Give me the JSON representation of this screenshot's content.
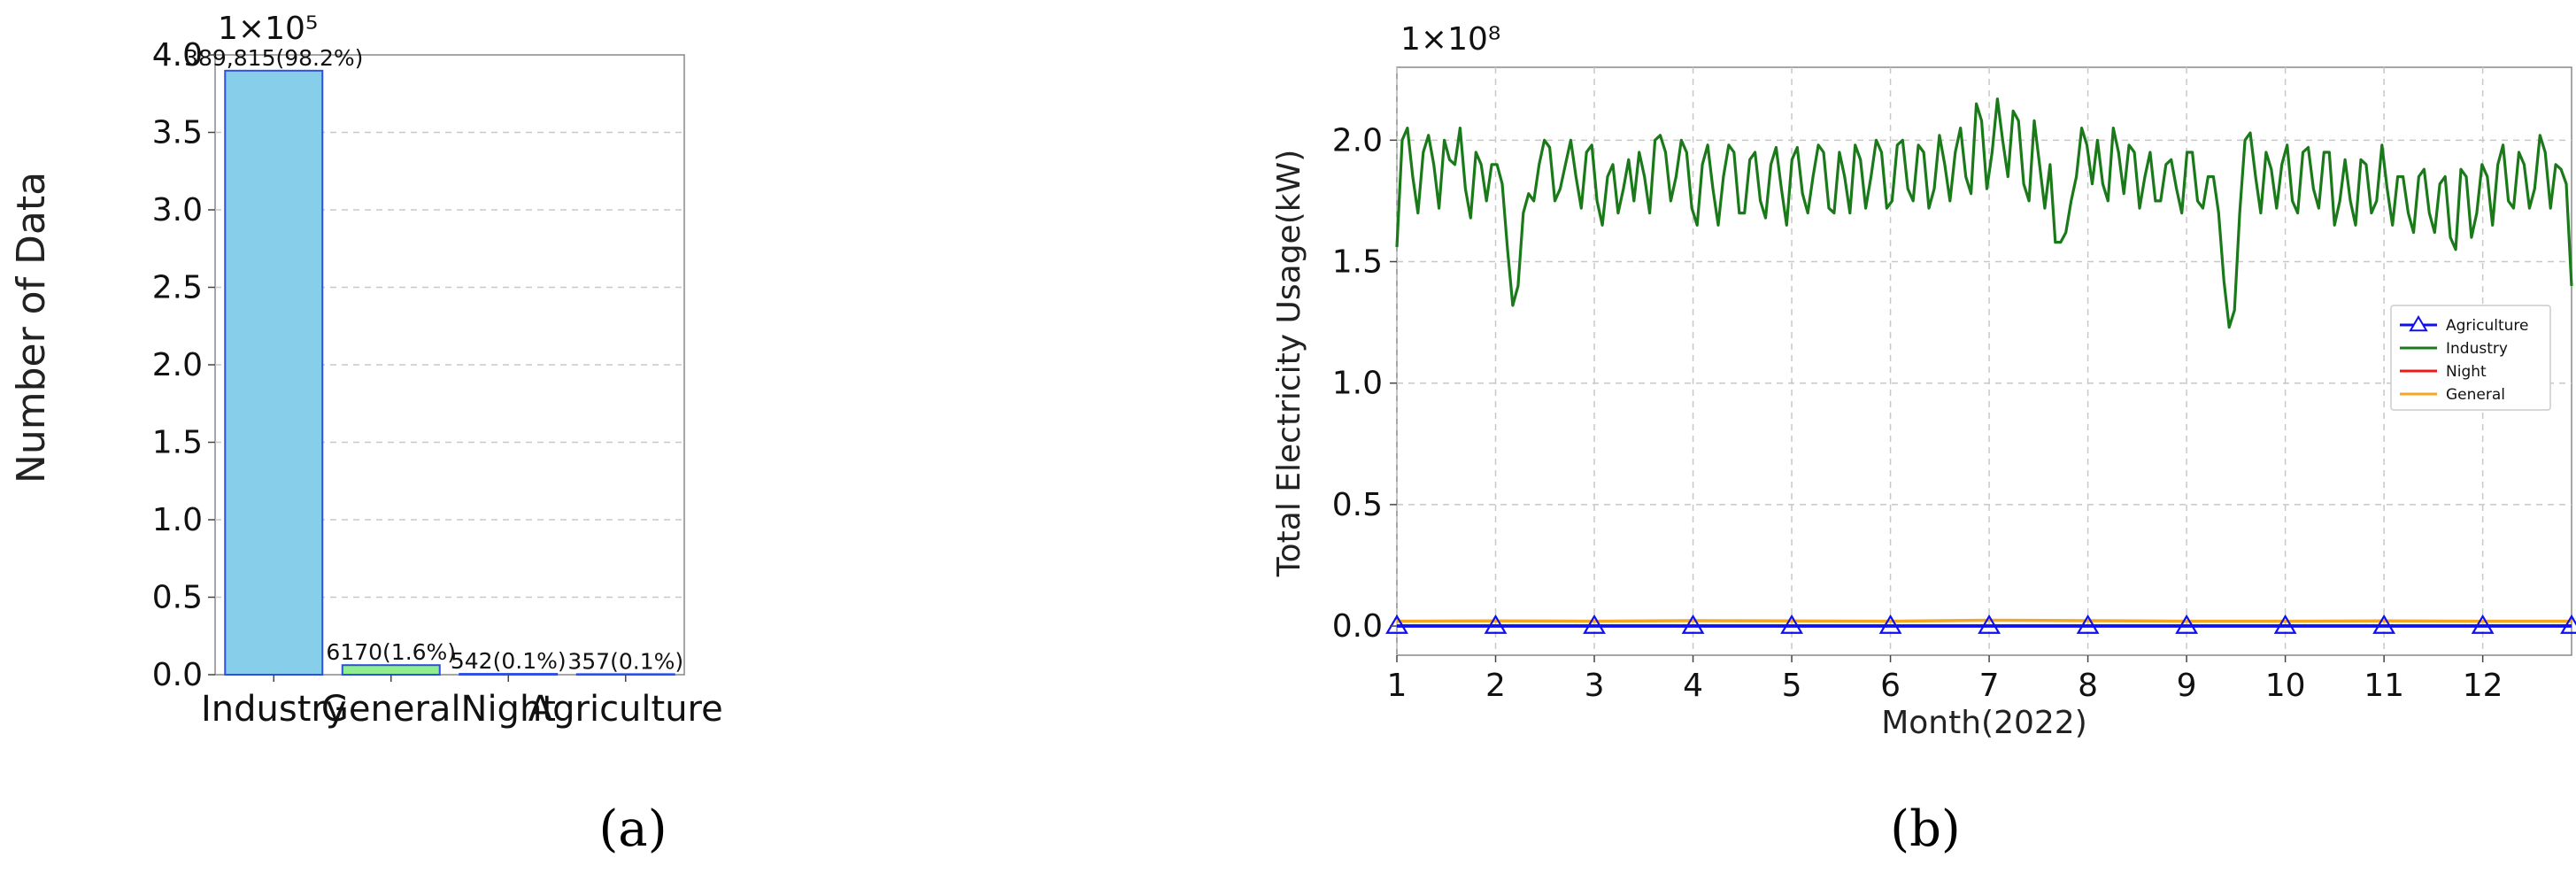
{
  "chart_data": [
    {
      "panel_label": "(a)",
      "type": "bar",
      "ylabel": "Number of Data",
      "y_multiplier": "1×10⁵",
      "ylim": [
        0,
        4.0
      ],
      "yticks": [
        "0.0",
        "0.5",
        "1.0",
        "1.5",
        "2.0",
        "2.5",
        "3.0",
        "3.5",
        "4.0"
      ],
      "grid": true,
      "categories": [
        "Industry",
        "General",
        "Night",
        "Agriculture"
      ],
      "values": [
        389815,
        6170,
        542,
        357
      ],
      "bar_labels": [
        "389,815(98.2%)",
        "6170(1.6%)",
        "542(0.1%)",
        "357(0.1%)"
      ],
      "colors": [
        "#87ceeb",
        "#90ee90",
        "#f08080",
        "#ffd27f"
      ],
      "edge_color": "#2f4fe0"
    },
    {
      "panel_label": "(b)",
      "type": "line",
      "xlabel": "Month(2022)",
      "ylabel": "Total Electricity Usage(kW)",
      "y_multiplier": "1×10⁸",
      "ylim": [
        -0.12,
        2.3
      ],
      "xlim": [
        1,
        12.9
      ],
      "xticks": [
        "1",
        "2",
        "3",
        "4",
        "5",
        "6",
        "7",
        "8",
        "9",
        "10",
        "11",
        "12"
      ],
      "yticks": [
        "0.0",
        "0.5",
        "1.0",
        "1.5",
        "2.0"
      ],
      "grid": true,
      "legend_position": "right",
      "series": [
        {
          "name": "Agriculture",
          "color": "#1010ee",
          "marker": "triangle-open",
          "x": [
            1,
            2,
            3,
            4,
            5,
            6,
            7,
            8,
            9,
            10,
            11,
            12,
            12.9
          ],
          "values": [
            0,
            0,
            0,
            0,
            0,
            0,
            0,
            0,
            0,
            0,
            0,
            0,
            0
          ]
        },
        {
          "name": "Industry",
          "color": "#1a7a1a",
          "x_start": 1,
          "x_end": 12.9,
          "values": [
            1.56,
            2.0,
            2.05,
            1.85,
            1.7,
            1.95,
            2.02,
            1.9,
            1.72,
            2.0,
            1.92,
            1.9,
            2.05,
            1.8,
            1.68,
            1.95,
            1.9,
            1.75,
            1.9,
            1.9,
            1.82,
            1.55,
            1.32,
            1.4,
            1.7,
            1.78,
            1.75,
            1.9,
            2.0,
            1.97,
            1.75,
            1.8,
            1.9,
            2.0,
            1.85,
            1.72,
            1.95,
            1.98,
            1.75,
            1.65,
            1.85,
            1.9,
            1.7,
            1.8,
            1.92,
            1.75,
            1.95,
            1.85,
            1.7,
            2.0,
            2.02,
            1.95,
            1.75,
            1.85,
            2.0,
            1.95,
            1.72,
            1.65,
            1.9,
            1.98,
            1.8,
            1.65,
            1.85,
            1.98,
            1.95,
            1.7,
            1.7,
            1.92,
            1.95,
            1.75,
            1.68,
            1.9,
            1.97,
            1.8,
            1.65,
            1.92,
            1.97,
            1.78,
            1.7,
            1.85,
            1.98,
            1.95,
            1.72,
            1.7,
            1.95,
            1.85,
            1.7,
            1.98,
            1.92,
            1.72,
            1.85,
            2.0,
            1.95,
            1.72,
            1.75,
            1.98,
            2.0,
            1.8,
            1.75,
            1.98,
            1.95,
            1.72,
            1.8,
            2.02,
            1.9,
            1.75,
            1.95,
            2.05,
            1.85,
            1.78,
            2.15,
            2.08,
            1.8,
            1.95,
            2.17,
            2.0,
            1.85,
            2.12,
            2.08,
            1.82,
            1.75,
            2.08,
            1.9,
            1.72,
            1.9,
            1.58,
            1.58,
            1.62,
            1.75,
            1.85,
            2.05,
            1.98,
            1.82,
            2.0,
            1.82,
            1.75,
            2.05,
            1.95,
            1.78,
            1.98,
            1.95,
            1.72,
            1.85,
            1.95,
            1.75,
            1.75,
            1.9,
            1.92,
            1.8,
            1.7,
            1.95,
            1.95,
            1.75,
            1.72,
            1.85,
            1.85,
            1.7,
            1.42,
            1.23,
            1.3,
            1.7,
            2.0,
            2.03,
            1.85,
            1.7,
            1.95,
            1.88,
            1.72,
            1.9,
            1.98,
            1.75,
            1.7,
            1.95,
            1.97,
            1.8,
            1.72,
            1.95,
            1.95,
            1.65,
            1.75,
            1.92,
            1.75,
            1.65,
            1.92,
            1.9,
            1.7,
            1.75,
            1.98,
            1.8,
            1.65,
            1.85,
            1.85,
            1.7,
            1.62,
            1.85,
            1.88,
            1.7,
            1.62,
            1.82,
            1.85,
            1.6,
            1.55,
            1.88,
            1.85,
            1.6,
            1.7,
            1.9,
            1.85,
            1.65,
            1.9,
            1.98,
            1.75,
            1.72,
            1.95,
            1.9,
            1.72,
            1.8,
            2.02,
            1.95,
            1.72,
            1.9,
            1.88,
            1.82,
            1.4
          ]
        },
        {
          "name": "Night",
          "color": "#ee1a1a",
          "x": [
            1,
            12.9
          ],
          "values": [
            0.001,
            0.001
          ]
        },
        {
          "name": "General",
          "color": "#f5a623",
          "x": [
            1,
            2,
            3,
            4,
            5,
            6,
            7,
            8,
            9,
            10,
            11,
            12,
            12.9
          ],
          "values": [
            0.02,
            0.021,
            0.02,
            0.022,
            0.021,
            0.02,
            0.024,
            0.022,
            0.02,
            0.02,
            0.021,
            0.02,
            0.02
          ]
        }
      ]
    }
  ]
}
